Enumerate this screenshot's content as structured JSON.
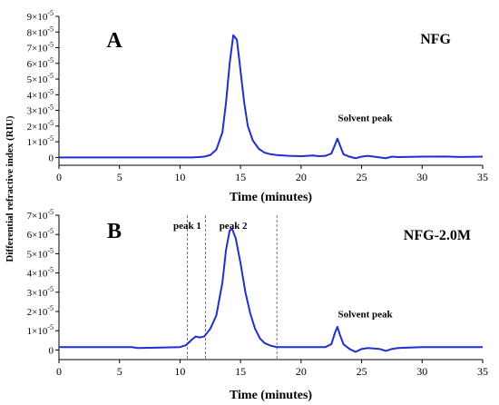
{
  "y_axis_title": "Differential refractive index (RIU)",
  "chart_data": [
    {
      "type": "line",
      "panel_label": "A",
      "sample_label": "NFG",
      "xlabel": "Time (minutes)",
      "ylabel": "Differential refractive index (RIU)",
      "xlim": [
        0,
        35
      ],
      "ylim": [
        -0.5,
        9
      ],
      "y_unit_exponent": -5,
      "x_ticks": [
        0,
        5,
        10,
        15,
        20,
        25,
        30,
        35
      ],
      "y_ticks": [
        {
          "value": 0,
          "mantissa": "0",
          "exp": ""
        },
        {
          "value": 1,
          "mantissa": "1×10",
          "exp": "-5"
        },
        {
          "value": 2,
          "mantissa": "2×10",
          "exp": "-5"
        },
        {
          "value": 3,
          "mantissa": "3×10",
          "exp": "-5"
        },
        {
          "value": 4,
          "mantissa": "4×10",
          "exp": "-5"
        },
        {
          "value": 5,
          "mantissa": "5×10",
          "exp": "-5"
        },
        {
          "value": 6,
          "mantissa": "6×10",
          "exp": "-5"
        },
        {
          "value": 7,
          "mantissa": "7×10",
          "exp": "-5"
        },
        {
          "value": 8,
          "mantissa": "8×10",
          "exp": "-5"
        },
        {
          "value": 9,
          "mantissa": "9×10",
          "exp": "-5"
        }
      ],
      "annotations": [
        {
          "text": "Solvent peak",
          "x": 25.3,
          "y": 2.3
        }
      ],
      "series": [
        {
          "color": "#1f2fd0",
          "x": [
            0,
            2,
            4,
            6,
            8,
            10,
            10.5,
            11,
            11.5,
            12,
            12.5,
            13,
            13.5,
            13.8,
            14.1,
            14.4,
            14.7,
            15.0,
            15.3,
            15.6,
            16,
            16.5,
            17,
            17.5,
            18,
            19,
            20,
            21,
            21.5,
            22,
            22.5,
            22.8,
            23.0,
            23.2,
            23.5,
            24,
            24.5,
            25,
            25.5,
            26,
            26.5,
            27,
            27.5,
            28,
            30,
            32,
            33,
            35
          ],
          "y": [
            0,
            0,
            0,
            0,
            0,
            0,
            0,
            0,
            0.02,
            0.05,
            0.15,
            0.5,
            1.6,
            3.5,
            6.0,
            7.8,
            7.5,
            5.5,
            3.5,
            2.0,
            1.1,
            0.55,
            0.3,
            0.2,
            0.15,
            0.1,
            0.08,
            0.12,
            0.08,
            0.1,
            0.25,
            0.8,
            1.2,
            0.8,
            0.2,
            0.05,
            -0.05,
            0.05,
            0.1,
            0.05,
            0.0,
            -0.05,
            0.05,
            0.02,
            0.05,
            0.06,
            0.03,
            0.05
          ]
        }
      ]
    },
    {
      "type": "line",
      "panel_label": "B",
      "sample_label": "NFG-2.0M",
      "xlabel": "Time (minutes)",
      "ylabel": "Differential refractive index (RIU)",
      "xlim": [
        0,
        35
      ],
      "ylim": [
        -0.5,
        7
      ],
      "y_unit_exponent": -5,
      "x_ticks": [
        0,
        5,
        10,
        15,
        20,
        25,
        30,
        35
      ],
      "y_ticks": [
        {
          "value": 0,
          "mantissa": "0",
          "exp": ""
        },
        {
          "value": 1,
          "mantissa": "1×10",
          "exp": "-5"
        },
        {
          "value": 2,
          "mantissa": "2×10",
          "exp": "-5"
        },
        {
          "value": 3,
          "mantissa": "3×10",
          "exp": "-5"
        },
        {
          "value": 4,
          "mantissa": "4×10",
          "exp": "-5"
        },
        {
          "value": 5,
          "mantissa": "5×10",
          "exp": "-5"
        },
        {
          "value": 6,
          "mantissa": "6×10",
          "exp": "-5"
        },
        {
          "value": 7,
          "mantissa": "7×10",
          "exp": "-5"
        }
      ],
      "vertical_markers": [
        10.6,
        12.1,
        18.0
      ],
      "annotations": [
        {
          "text": "peak 1",
          "x": 10.6,
          "y": 6.3
        },
        {
          "text": "peak 2",
          "x": 14.4,
          "y": 6.3
        },
        {
          "text": "Solvent peak",
          "x": 25.3,
          "y": 1.7
        }
      ],
      "series": [
        {
          "color": "#1f2fd0",
          "x": [
            0,
            3,
            6,
            6.5,
            8,
            10,
            10.5,
            11,
            11.3,
            11.6,
            12,
            12.5,
            13,
            13.5,
            13.8,
            14.1,
            14.3,
            14.6,
            15.0,
            15.4,
            15.8,
            16.2,
            16.6,
            17,
            17.5,
            18,
            19,
            20,
            21,
            22,
            22.5,
            22.8,
            23.0,
            23.2,
            23.5,
            24,
            24.5,
            25,
            25.5,
            26,
            26.5,
            27,
            27.5,
            28,
            30,
            32,
            35
          ],
          "y": [
            0.15,
            0.15,
            0.15,
            0.1,
            0.12,
            0.15,
            0.25,
            0.55,
            0.7,
            0.65,
            0.7,
            1.1,
            1.8,
            3.5,
            5.2,
            6.2,
            6.3,
            5.8,
            4.5,
            3.0,
            1.9,
            1.1,
            0.6,
            0.35,
            0.22,
            0.15,
            0.15,
            0.15,
            0.15,
            0.15,
            0.3,
            0.9,
            1.2,
            0.8,
            0.3,
            0.05,
            -0.1,
            0.05,
            0.1,
            0.08,
            0.05,
            -0.05,
            0.05,
            0.1,
            0.15,
            0.15,
            0.15
          ]
        }
      ]
    }
  ]
}
